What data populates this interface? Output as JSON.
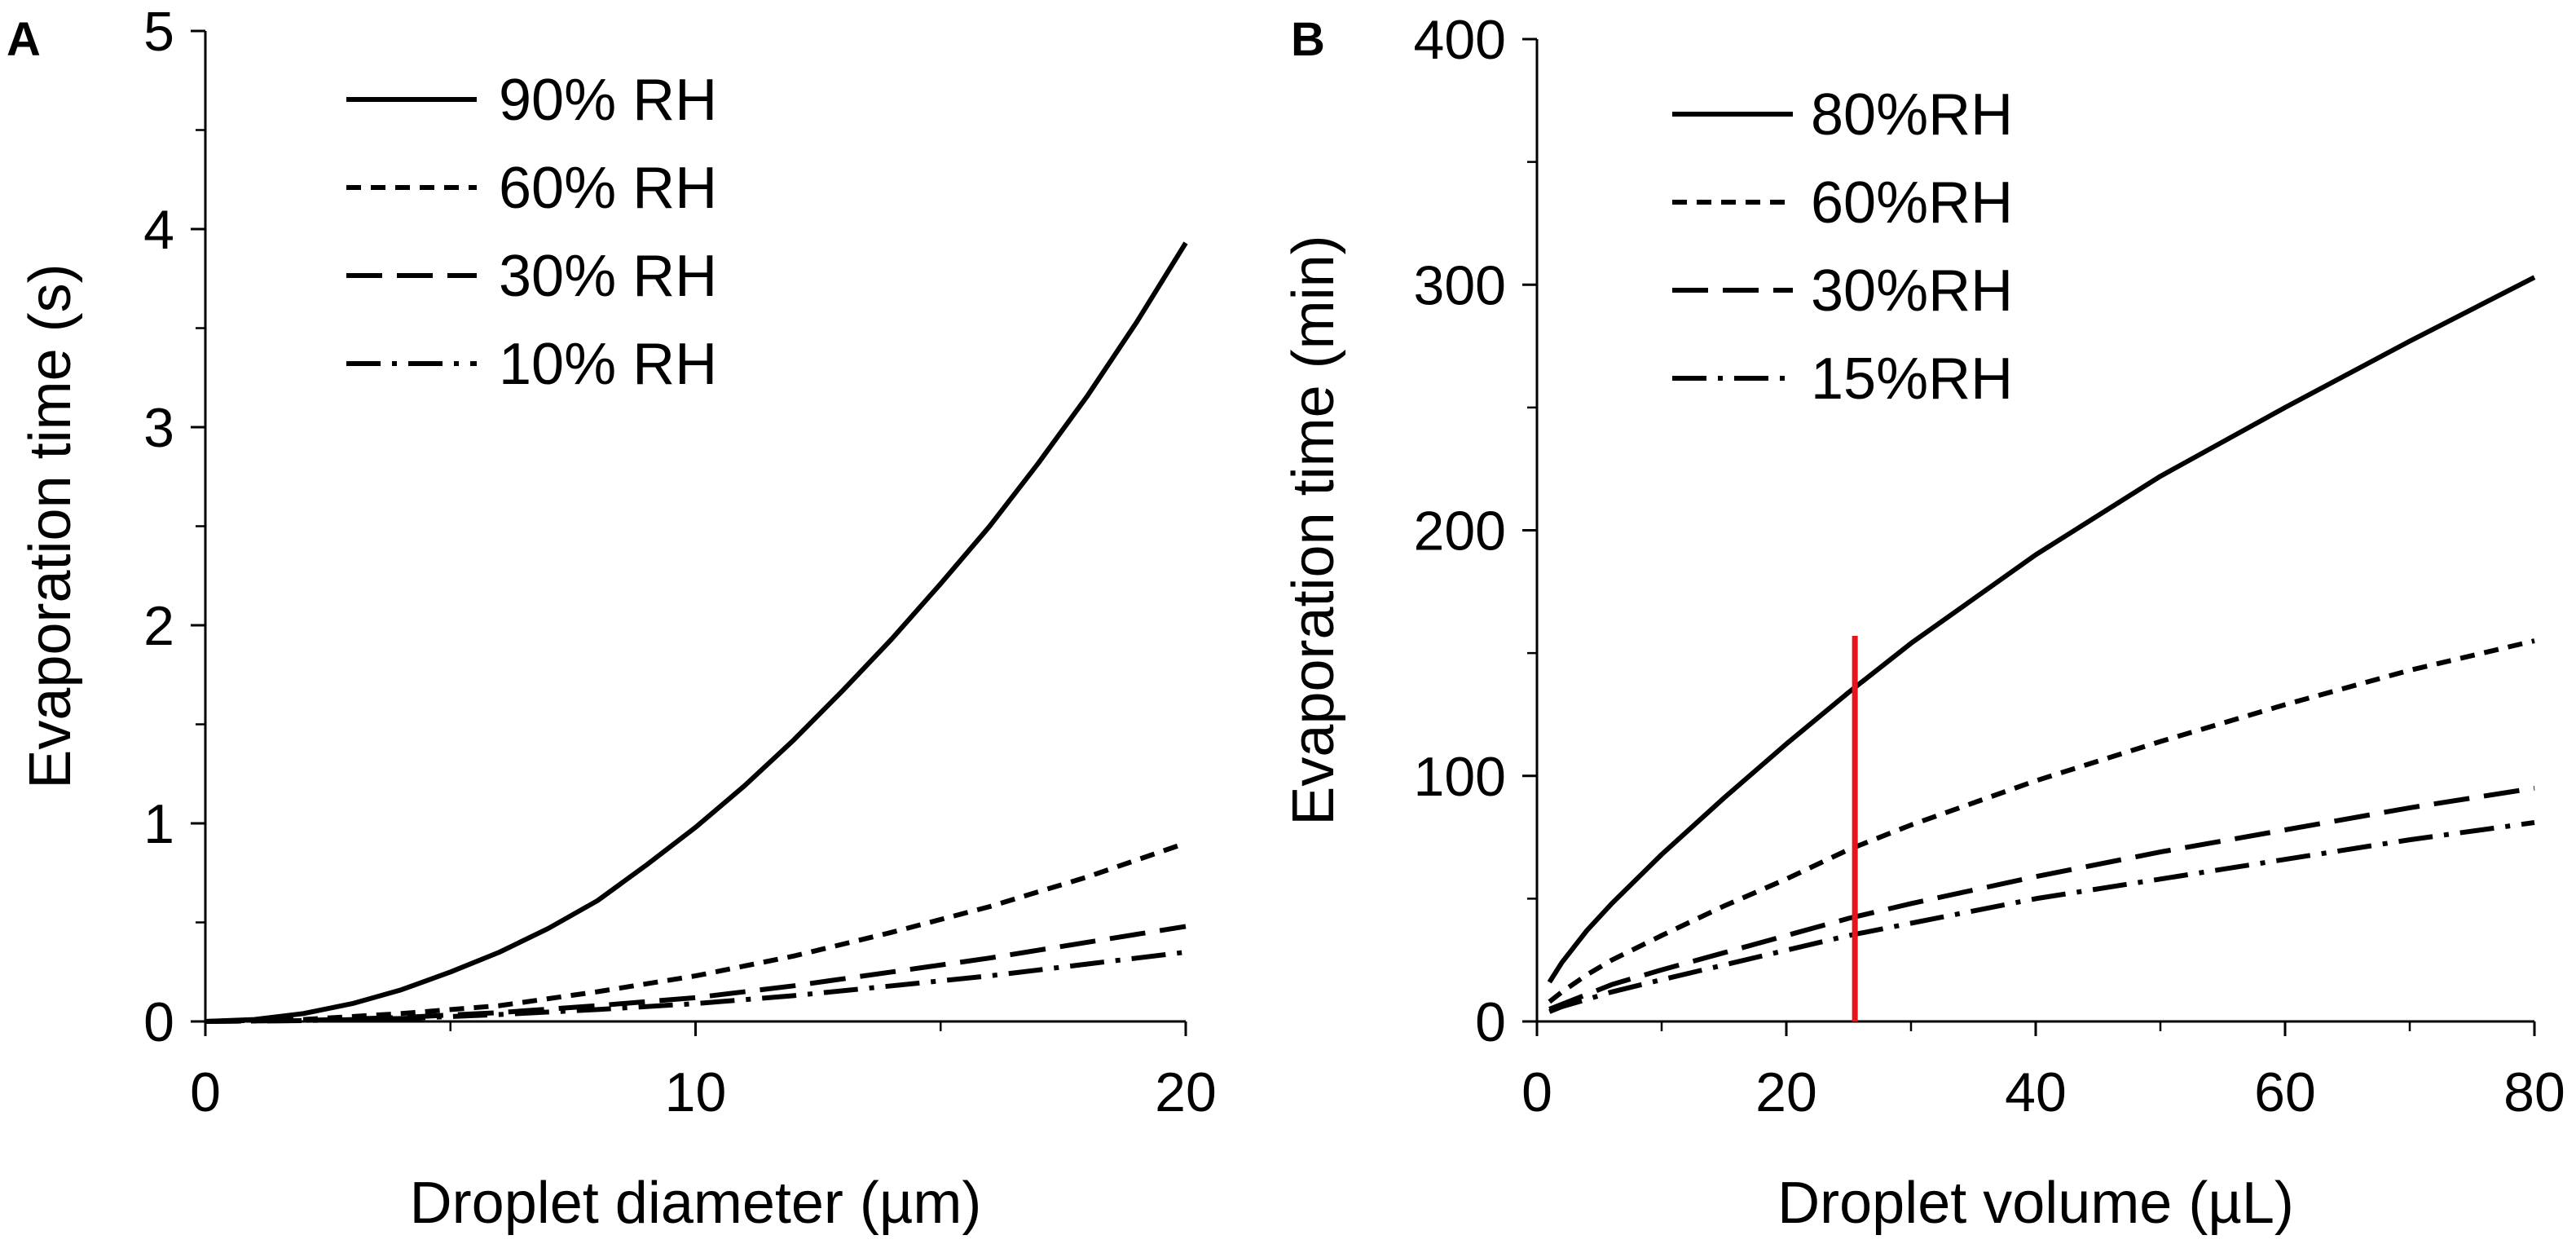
{
  "figure": {
    "panels": [
      "A",
      "B"
    ]
  },
  "chart_data": [
    {
      "panel": "A",
      "type": "line",
      "title": "",
      "xlabel": "Droplet diameter (µm)",
      "ylabel": "Evaporation time (s)",
      "xlim": [
        0,
        20
      ],
      "ylim": [
        0,
        5
      ],
      "xticks": [
        0,
        10,
        20
      ],
      "yticks": [
        0,
        1,
        2,
        3,
        4,
        5
      ],
      "x_minor_ticks": [
        5,
        15
      ],
      "y_minor_ticks": [
        0.5,
        1.5,
        2.5,
        3.5,
        4.5
      ],
      "grid": false,
      "legend_position": "top-left",
      "series": [
        {
          "name": "90% RH",
          "dash": "solid",
          "x": [
            0,
            1,
            2,
            3,
            4,
            5,
            6,
            7,
            8,
            9,
            10,
            11,
            12,
            13,
            14,
            15,
            16,
            17,
            18,
            19,
            20
          ],
          "y": [
            0,
            0.01,
            0.04,
            0.09,
            0.16,
            0.25,
            0.35,
            0.47,
            0.61,
            0.79,
            0.98,
            1.19,
            1.42,
            1.67,
            1.93,
            2.21,
            2.5,
            2.82,
            3.16,
            3.53,
            3.93
          ]
        },
        {
          "name": "60% RH",
          "dash": "short-dash",
          "x": [
            0,
            2,
            4,
            6,
            8,
            10,
            12,
            14,
            16,
            18,
            20
          ],
          "y": [
            0,
            0.01,
            0.04,
            0.08,
            0.15,
            0.23,
            0.33,
            0.45,
            0.58,
            0.73,
            0.9
          ]
        },
        {
          "name": "30% RH",
          "dash": "long-dash",
          "x": [
            0,
            2,
            4,
            6,
            8,
            10,
            12,
            14,
            16,
            18,
            20
          ],
          "y": [
            0,
            0.005,
            0.02,
            0.045,
            0.08,
            0.12,
            0.18,
            0.25,
            0.32,
            0.4,
            0.48
          ]
        },
        {
          "name": "10% RH",
          "dash": "dash-dot",
          "x": [
            0,
            2,
            4,
            6,
            8,
            10,
            12,
            14,
            16,
            18,
            20
          ],
          "y": [
            0,
            0.004,
            0.015,
            0.035,
            0.06,
            0.09,
            0.13,
            0.18,
            0.23,
            0.29,
            0.35
          ]
        }
      ]
    },
    {
      "panel": "B",
      "type": "line",
      "title": "",
      "xlabel": "Droplet volume (µL)",
      "ylabel": "Evaporation time (min)",
      "xlim": [
        0,
        80
      ],
      "ylim": [
        0,
        400
      ],
      "xticks": [
        0,
        20,
        40,
        60,
        80
      ],
      "yticks": [
        0,
        100,
        200,
        300,
        400
      ],
      "x_minor_ticks": [
        10,
        30,
        50,
        70
      ],
      "y_minor_ticks": [
        50,
        150,
        250,
        350
      ],
      "grid": false,
      "legend_position": "top-left",
      "vertical_marker": {
        "x": 25.5,
        "y_from": 0,
        "y_to": 157,
        "color": "#e8141b"
      },
      "series": [
        {
          "name": "80%RH",
          "dash": "solid",
          "x": [
            1,
            2,
            4,
            6,
            10,
            15,
            20,
            25,
            30,
            40,
            50,
            60,
            70,
            80
          ],
          "y": [
            16,
            24,
            37,
            48,
            68,
            91,
            113,
            134,
            154,
            190,
            222,
            250,
            277,
            303
          ]
        },
        {
          "name": "60%RH",
          "dash": "short-dash",
          "x": [
            1,
            2,
            4,
            6,
            10,
            15,
            20,
            25,
            30,
            40,
            50,
            60,
            70,
            80
          ],
          "y": [
            8,
            12,
            19,
            25,
            35,
            47,
            58,
            70,
            80,
            98,
            114,
            129,
            143,
            155
          ]
        },
        {
          "name": "30%RH",
          "dash": "long-dash",
          "x": [
            1,
            2,
            4,
            6,
            10,
            15,
            20,
            25,
            30,
            40,
            50,
            60,
            70,
            80
          ],
          "y": [
            5,
            7,
            11,
            15,
            21,
            28,
            35,
            42,
            48,
            59,
            69,
            78,
            87,
            95
          ]
        },
        {
          "name": "15%RH",
          "dash": "dash-dot",
          "x": [
            1,
            2,
            4,
            6,
            10,
            15,
            20,
            25,
            30,
            40,
            50,
            60,
            70,
            80
          ],
          "y": [
            4,
            6,
            9,
            12,
            17,
            23,
            29,
            35,
            40,
            50,
            58,
            66,
            74,
            81
          ]
        }
      ]
    }
  ]
}
